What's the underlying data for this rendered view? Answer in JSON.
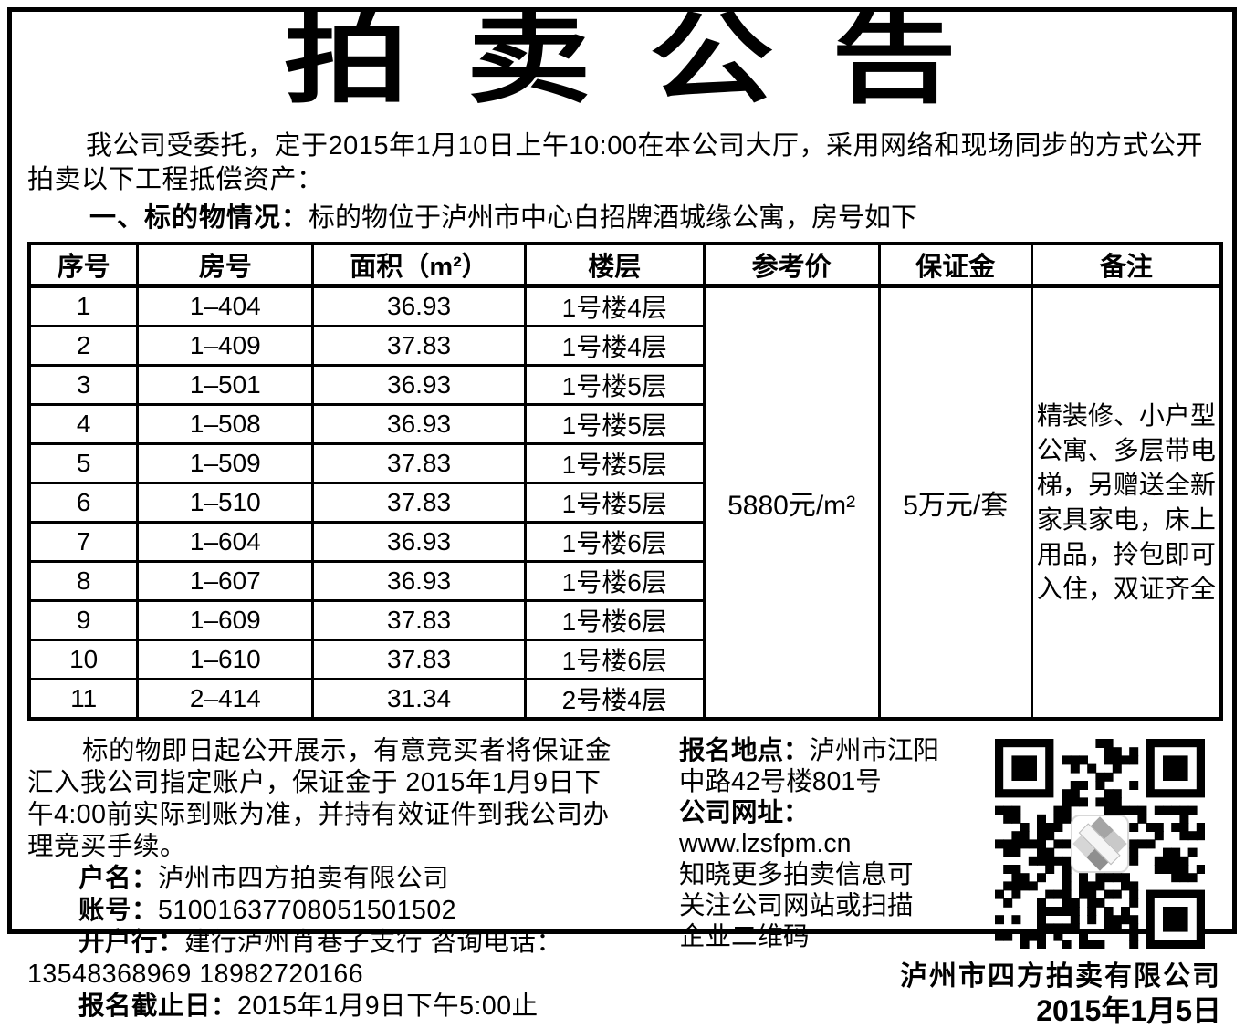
{
  "page": {
    "title": "拍卖公告",
    "intro": "我公司受委托，定于2015年1月10日上午10:00在本公司大厅，采用网络和现场同步的方式公开拍卖以下工程抵偿资产：",
    "section1_label": "一、标的物情况：",
    "section1_text": "标的物位于泸州市中心白招牌酒城缘公寓，房号如下"
  },
  "table": {
    "headers": [
      "序号",
      "房号",
      "面积（m²）",
      "楼层",
      "参考价",
      "保证金",
      "备注"
    ],
    "rows": [
      {
        "seq": "1",
        "room": "1–404",
        "area": "36.93",
        "floor": "1号楼4层"
      },
      {
        "seq": "2",
        "room": "1–409",
        "area": "37.83",
        "floor": "1号楼4层"
      },
      {
        "seq": "3",
        "room": "1–501",
        "area": "36.93",
        "floor": "1号楼5层"
      },
      {
        "seq": "4",
        "room": "1–508",
        "area": "36.93",
        "floor": "1号楼5层"
      },
      {
        "seq": "5",
        "room": "1–509",
        "area": "37.83",
        "floor": "1号楼5层"
      },
      {
        "seq": "6",
        "room": "1–510",
        "area": "37.83",
        "floor": "1号楼5层"
      },
      {
        "seq": "7",
        "room": "1–604",
        "area": "36.93",
        "floor": "1号楼6层"
      },
      {
        "seq": "8",
        "room": "1–607",
        "area": "36.93",
        "floor": "1号楼6层"
      },
      {
        "seq": "9",
        "room": "1–609",
        "area": "37.83",
        "floor": "1号楼6层"
      },
      {
        "seq": "10",
        "room": "1–610",
        "area": "37.83",
        "floor": "1号楼6层"
      },
      {
        "seq": "11",
        "room": "2–414",
        "area": "31.34",
        "floor": "2号楼4层"
      }
    ],
    "reference_price": "5880元/m²",
    "deposit": "5万元/套",
    "remark": "精装修、小户型公寓、多层带电梯，另赠送全新家具家电，床上用品，拎包即可入住，双证齐全"
  },
  "notice": {
    "paragraph": "标的物即日起公开展示，有意竞买者将保证金汇入我公司指定账户，保证金于 2015年1月9日下午4:00前实际到账为准，并持有效证件到我公司办理竞买手续。",
    "account_name_label": "户名：",
    "account_name": "泸州市四方拍卖有限公司",
    "account_no_label": "账号：",
    "account_no": "51001637708051501502",
    "bank_label": "开户行：",
    "bank": "建行泸州肖巷子支行 咨询电话：",
    "phones": "13548368969 18982720166",
    "deadline_label": "报名截止日：",
    "deadline": "2015年1月9日下午5:00止"
  },
  "contact": {
    "location_label": "报名地点：",
    "location_line1": "泸州市江阳",
    "location_line2": "中路42号楼801号",
    "website_label": "公司网址：",
    "website": "www.lzsfpm.cn",
    "qr_note_line1": "知晓更多拍卖信息可",
    "qr_note_line2": "关注公司网站或扫描",
    "qr_note_line3": "企业二维码"
  },
  "signature": {
    "company": "泸州市四方拍卖有限公司",
    "date": "2015年1月5日"
  },
  "colors": {
    "ink": "#000000",
    "paper": "#ffffff"
  }
}
